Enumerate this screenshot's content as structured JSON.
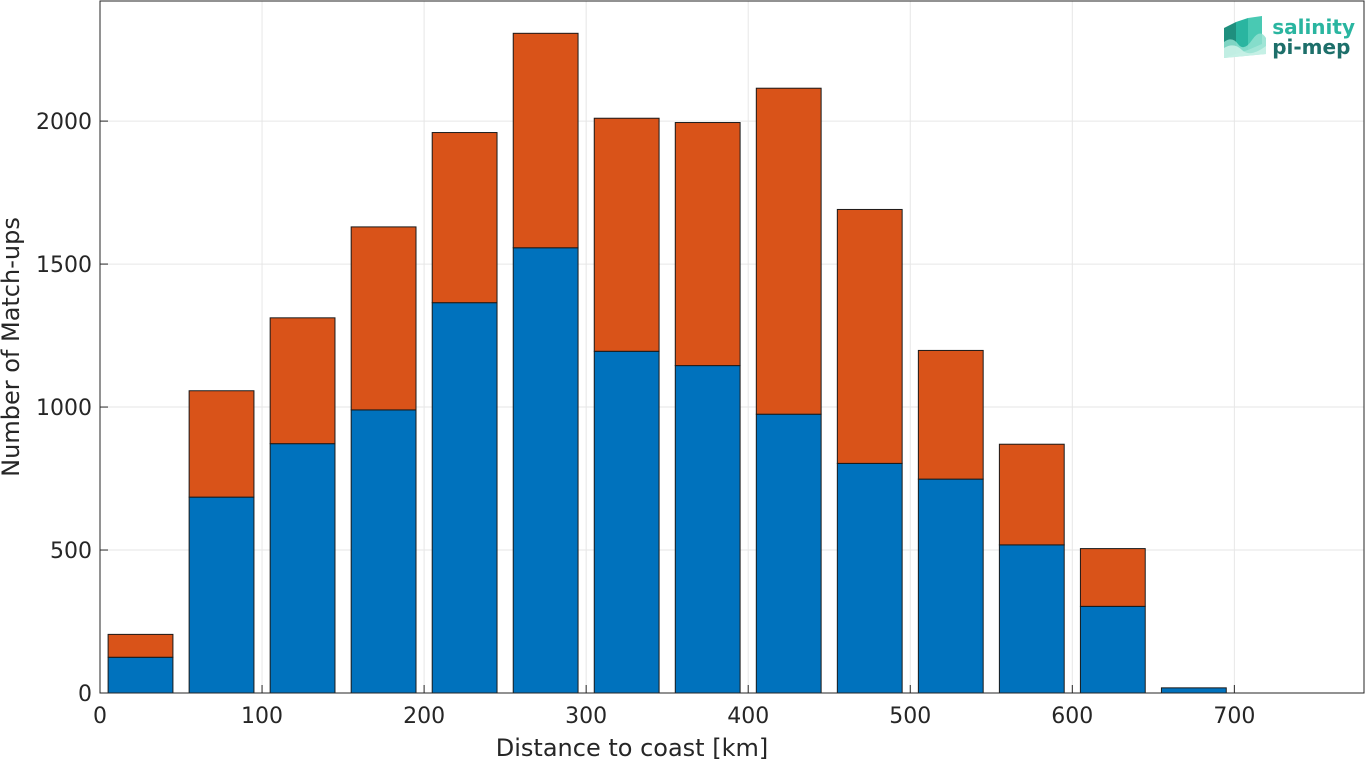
{
  "chart_data": {
    "type": "bar",
    "stacked": true,
    "title": "",
    "xlabel": "Distance to coast [km]",
    "ylabel": "Number of Match-ups",
    "xlim": [
      0,
      780
    ],
    "ylim": [
      0,
      2420
    ],
    "grid": true,
    "x": [
      25,
      75,
      125,
      175,
      225,
      275,
      325,
      375,
      425,
      475,
      525,
      575,
      625,
      675,
      725
    ],
    "bar_width": 40,
    "x_ticks": [
      0,
      100,
      200,
      300,
      400,
      500,
      600,
      700
    ],
    "y_ticks": [
      0,
      500,
      1000,
      1500,
      2000
    ],
    "series": [
      {
        "color": "#0072bd",
        "values": [
          125,
          685,
          872,
          990,
          1365,
          1557,
          1195,
          1145,
          975,
          803,
          748,
          518,
          303,
          18,
          0
        ]
      },
      {
        "color": "#d95319",
        "values": [
          80,
          372,
          440,
          640,
          595,
          750,
          815,
          850,
          1140,
          888,
          450,
          352,
          202,
          0,
          0
        ]
      }
    ]
  },
  "logo": {
    "line1": "salinity",
    "line2": "pi-mep",
    "color1": "#2ab5a0",
    "color2": "#1d6f6a"
  }
}
